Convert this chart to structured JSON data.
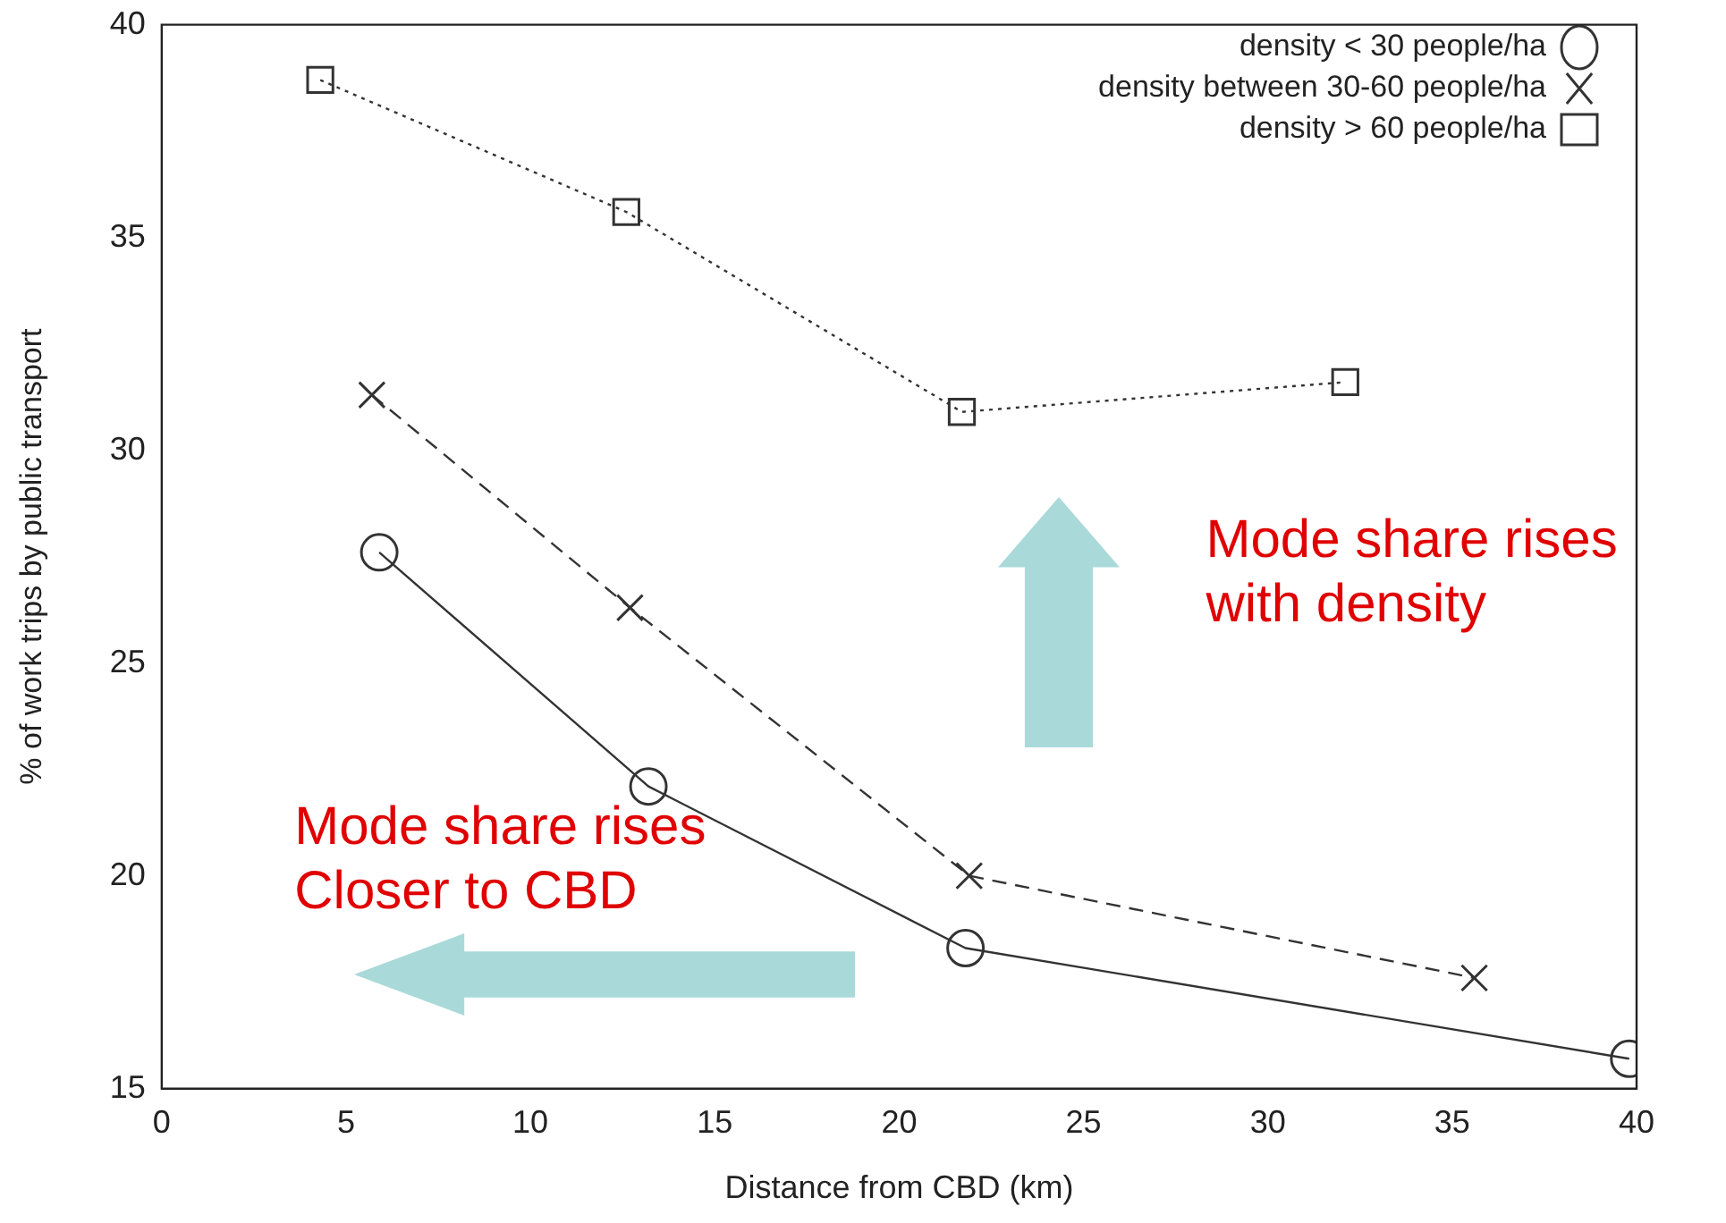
{
  "chart_data": {
    "type": "line",
    "xlabel": "Distance from CBD (km)",
    "ylabel": "% of work trips by public transport",
    "xlim": [
      0,
      40
    ],
    "xticks": [
      0,
      5,
      10,
      15,
      20,
      25,
      30,
      35,
      40
    ],
    "ylim": [
      15,
      40
    ],
    "yticks": [
      15,
      20,
      25,
      30,
      35,
      40
    ],
    "grid": false,
    "legend": "top right",
    "series": [
      {
        "name": "density < 30 people/ha",
        "color": "#333333",
        "marker": "circle",
        "line_style": "solid",
        "x": [
          5.9,
          13.2,
          21.8,
          39.8
        ],
        "values": [
          27.6,
          22.1,
          18.3,
          15.7
        ]
      },
      {
        "name": "density between 30-60 people/ha",
        "color": "#333333",
        "marker": "cross",
        "line_style": "dashed",
        "x": [
          5.7,
          12.7,
          21.9,
          35.6
        ],
        "values": [
          31.3,
          26.3,
          20.0,
          17.6
        ]
      },
      {
        "name": "density > 60 people/ha",
        "color": "#333333",
        "marker": "square",
        "line_style": "dotted",
        "x": [
          4.3,
          12.6,
          21.7,
          32.1
        ],
        "values": [
          38.7,
          35.6,
          30.9,
          31.6
        ]
      }
    ],
    "annotations": [
      "Mode share rises\nCloser to CBD",
      "Mode share rises\nwith density"
    ]
  }
}
